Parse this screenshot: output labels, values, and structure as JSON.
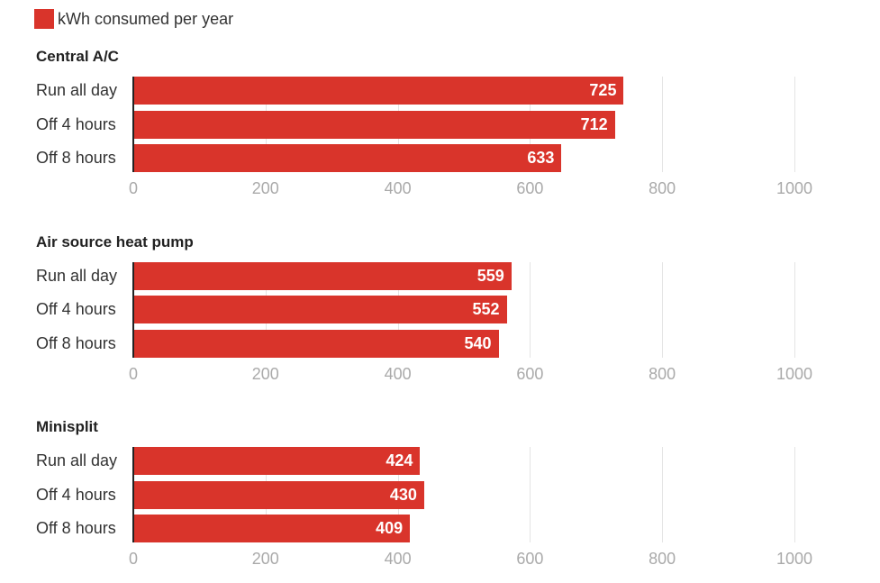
{
  "chart_data": {
    "type": "bar",
    "orientation": "horizontal",
    "legend": {
      "label": "kWh consumed per year",
      "color": "#d9342b",
      "placement": "top-left"
    },
    "bar_color": "#d9342b",
    "xlim": [
      0,
      1000
    ],
    "xticks": [
      "0",
      "200",
      "400",
      "600",
      "800",
      "1000"
    ],
    "grid": true,
    "panels": [
      {
        "title": "Central A/C",
        "categories": [
          "Run all day",
          "Off 4 hours",
          "Off 8 hours"
        ],
        "values": [
          725,
          712,
          633
        ]
      },
      {
        "title": "Air source heat pump",
        "categories": [
          "Run all day",
          "Off 4 hours",
          "Off 8 hours"
        ],
        "values": [
          559,
          552,
          540
        ]
      },
      {
        "title": "Minisplit",
        "categories": [
          "Run all day",
          "Off 4 hours",
          "Off 8 hours"
        ],
        "values": [
          424,
          430,
          409
        ]
      }
    ]
  }
}
